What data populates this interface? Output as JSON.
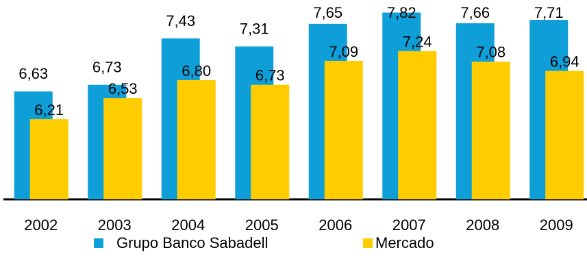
{
  "chart_data": {
    "type": "bar",
    "categories": [
      "2002",
      "2003",
      "2004",
      "2005",
      "2006",
      "2007",
      "2008",
      "2009"
    ],
    "series": [
      {
        "name": "Grupo Banco Sabadell",
        "color": "#0f9fd8",
        "values": [
          6.63,
          6.73,
          7.43,
          7.31,
          7.65,
          7.82,
          7.66,
          7.71
        ],
        "value_labels": [
          "6,63",
          "6,73",
          "7,43",
          "7,31",
          "7,65",
          "7,82",
          "7,66",
          "7,71"
        ]
      },
      {
        "name": "Mercado",
        "color": "#ffcc00",
        "values": [
          6.21,
          6.53,
          6.8,
          6.73,
          7.09,
          7.24,
          7.08,
          6.94
        ],
        "value_labels": [
          "6,21",
          "6,53",
          "6,80",
          "6,73",
          "7,09",
          "7,24",
          "7,08",
          "6,94"
        ]
      }
    ],
    "ylim": [
      5,
      8
    ]
  }
}
